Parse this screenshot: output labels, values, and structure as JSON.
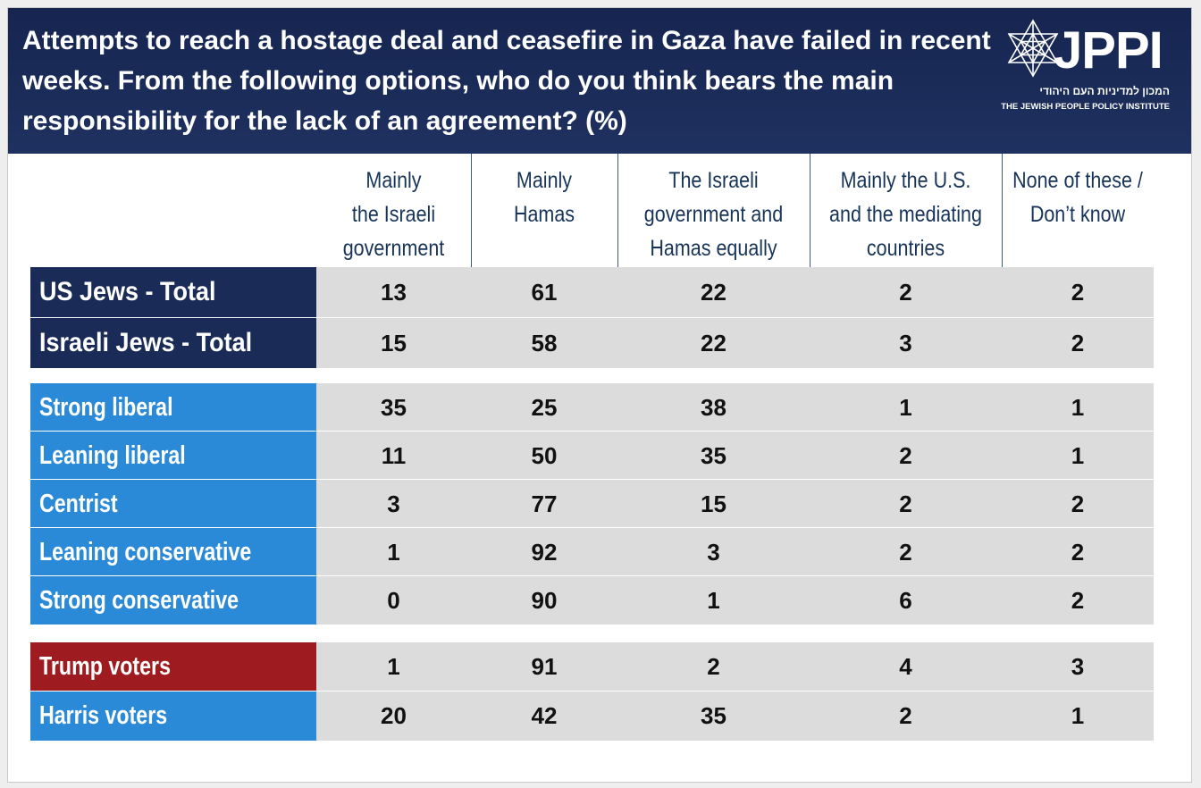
{
  "header": {
    "title": "Attempts to reach a hostage deal and ceasefire in Gaza have failed in recent weeks. From the following options, who do you think bears the main responsibility for the lack of an agreement? (%)",
    "logo_text": "JPPI",
    "logo_hebrew": "המכון למדיניות העם היהודי",
    "logo_english": "THE JEWISH PEOPLE POLICY INSTITUTE"
  },
  "colors": {
    "header_bg": "#1b2b57",
    "total_label_bg": "#1b2b57",
    "ideology_label_bg": "#2b8ad8",
    "trump_label_bg": "#9e1b1f",
    "harris_label_bg": "#2b8ad8",
    "cell_bg": "#dcdcdc",
    "column_header_text": "#173458"
  },
  "chart_data": {
    "type": "table",
    "title": "Attempts to reach a hostage deal and ceasefire in Gaza have failed in recent weeks. From the following options, who do you think bears the main responsibility for the lack of an agreement? (%)",
    "columns": [
      "Mainly\nthe Israeli\ngovernment",
      "Mainly\nHamas",
      "The Israeli\ngovernment and\nHamas equally",
      "Mainly the U.S.\nand the mediating\ncountries",
      "None of these /\nDon’t know"
    ],
    "groups": [
      {
        "rows": [
          {
            "label": "US Jews - Total",
            "style": "total",
            "values": [
              13,
              61,
              22,
              2,
              2
            ]
          },
          {
            "label": "Israeli Jews - Total",
            "style": "total",
            "values": [
              15,
              58,
              22,
              3,
              2
            ]
          }
        ]
      },
      {
        "rows": [
          {
            "label": "Strong liberal",
            "style": "blue",
            "values": [
              35,
              25,
              38,
              1,
              1
            ]
          },
          {
            "label": "Leaning liberal",
            "style": "blue",
            "values": [
              11,
              50,
              35,
              2,
              1
            ]
          },
          {
            "label": "Centrist",
            "style": "blue",
            "values": [
              3,
              77,
              15,
              2,
              2
            ]
          },
          {
            "label": "Leaning conservative",
            "style": "blue",
            "values": [
              1,
              92,
              3,
              2,
              2
            ]
          },
          {
            "label": "Strong conservative",
            "style": "blue",
            "values": [
              0,
              90,
              1,
              6,
              2
            ]
          }
        ]
      },
      {
        "rows": [
          {
            "label": "Trump voters",
            "style": "red",
            "values": [
              1,
              91,
              2,
              4,
              3
            ]
          },
          {
            "label": "Harris voters",
            "style": "blue",
            "values": [
              20,
              42,
              35,
              2,
              1
            ]
          }
        ]
      }
    ]
  }
}
